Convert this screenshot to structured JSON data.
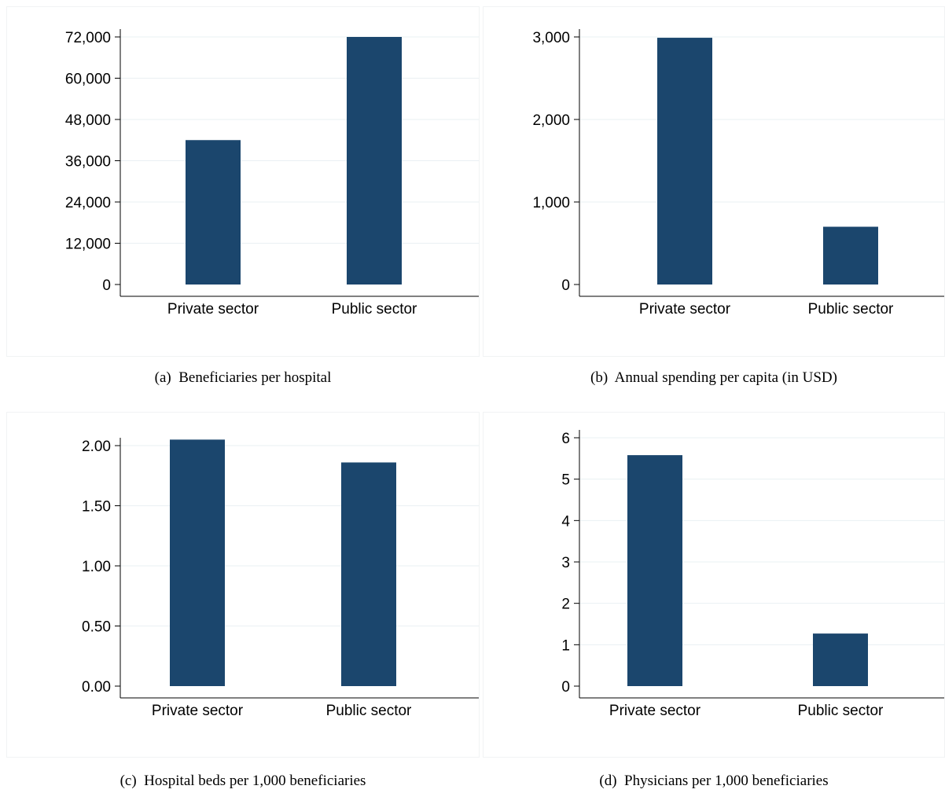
{
  "colors": {
    "bar": "#1b466d",
    "grid": "#eaf0f3",
    "axis": "#000000"
  },
  "chart_data": [
    {
      "type": "bar",
      "panel_label": "(a)",
      "caption": "Beneficiaries per hospital",
      "categories": [
        "Private sector",
        "Public sector"
      ],
      "values": [
        42000,
        72000
      ],
      "yticks": [
        0,
        12000,
        24000,
        36000,
        48000,
        60000,
        72000
      ],
      "ytick_labels": [
        "0",
        "12,000",
        "24,000",
        "36,000",
        "48,000",
        "60,000",
        "72,000"
      ],
      "ylim": [
        0,
        72000
      ],
      "grid": true
    },
    {
      "type": "bar",
      "panel_label": "(b)",
      "caption": "Annual spending per capita (in USD)",
      "categories": [
        "Private sector",
        "Public sector"
      ],
      "values": [
        2990,
        700
      ],
      "yticks": [
        0,
        1000,
        2000,
        3000
      ],
      "ytick_labels": [
        "0",
        "1,000",
        "2,000",
        "3,000"
      ],
      "ylim": [
        0,
        3000
      ],
      "grid": true
    },
    {
      "type": "bar",
      "panel_label": "(c)",
      "caption": "Hospital beds per 1,000 beneficiaries",
      "categories": [
        "Private sector",
        "Public sector"
      ],
      "values": [
        2.05,
        1.86
      ],
      "yticks": [
        0,
        0.5,
        1,
        1.5,
        2
      ],
      "ytick_labels": [
        "0.00",
        "0.50",
        "1.00",
        "1.50",
        "2.00"
      ],
      "ylim": [
        0,
        2
      ],
      "grid": true
    },
    {
      "type": "bar",
      "panel_label": "(d)",
      "caption": "Physicians per 1,000 beneficiaries",
      "categories": [
        "Private sector",
        "Public sector"
      ],
      "values": [
        5.58,
        1.27
      ],
      "yticks": [
        0,
        1,
        2,
        3,
        4,
        5,
        6
      ],
      "ytick_labels": [
        "0",
        "1",
        "2",
        "3",
        "4",
        "5",
        "6"
      ],
      "ylim": [
        0,
        6
      ],
      "grid": true
    }
  ]
}
